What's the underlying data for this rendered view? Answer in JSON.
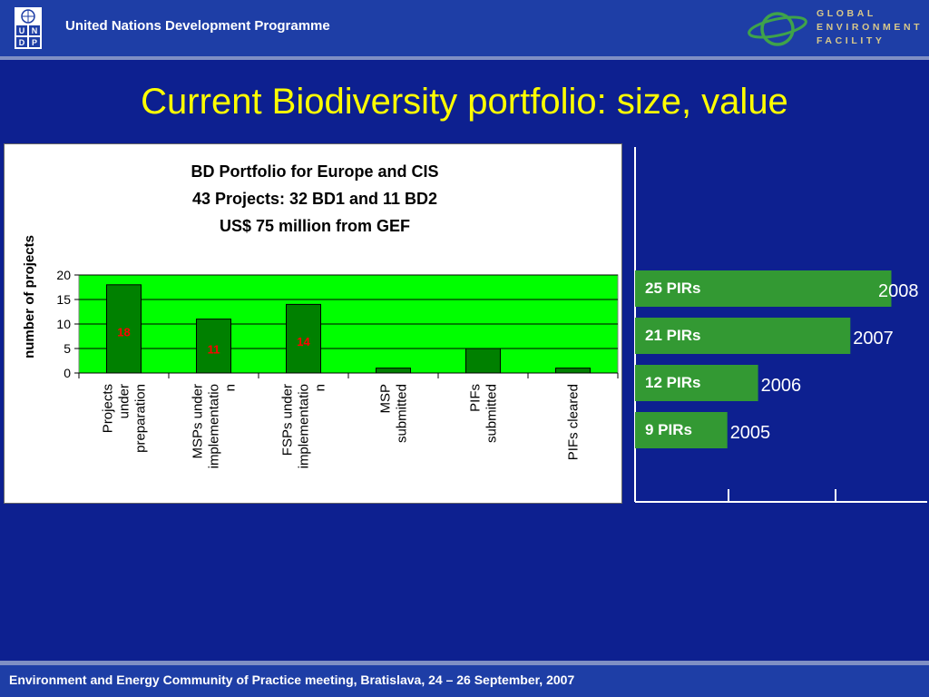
{
  "header": {
    "org_name": "United Nations Development Programme",
    "undp_letters": [
      "U",
      "N",
      "D",
      "P"
    ],
    "gef_lines": [
      "GLOBAL",
      "ENVIRONMENT",
      "FACILITY"
    ]
  },
  "slide_title": "Current Biodiversity portfolio: size, value",
  "chart_data": {
    "type": "bar",
    "title_lines": [
      "BD Portfolio for Europe and CIS",
      "43 Projects: 32 BD1 and 11 BD2",
      "US$ 75 million from GEF"
    ],
    "ylabel": "number of projects",
    "xlabel": "",
    "ylim": [
      0,
      20
    ],
    "yticks": [
      0,
      5,
      10,
      15,
      20
    ],
    "grid": true,
    "plot_background": "#00ff00",
    "bar_color": "#008000",
    "data_label_color": "#ff0000",
    "categories": [
      [
        "Projects",
        "under",
        "preparation"
      ],
      [
        "MSPs under",
        "implementatio",
        "n"
      ],
      [
        "FSPs under",
        "implementatio",
        "n"
      ],
      [
        "MSP",
        "submitted"
      ],
      [
        "PIFs",
        "submitted"
      ],
      [
        "PIFs cleared"
      ]
    ],
    "values": [
      18,
      11,
      14,
      1,
      5,
      1
    ],
    "data_labels": [
      "18",
      "11",
      "14",
      "",
      "",
      ""
    ]
  },
  "timeline": {
    "bar_color": "#339933",
    "items": [
      {
        "label": "25 PIRs",
        "year": "2008",
        "value": 25
      },
      {
        "label": "21 PIRs",
        "year": "2007",
        "value": 21
      },
      {
        "label": "12 PIRs",
        "year": "2006",
        "value": 12
      },
      {
        "label": "9 PIRs",
        "year": "2005",
        "value": 9
      }
    ]
  },
  "footer": {
    "text": "Environment and Energy Community of Practice meeting, Bratislava, 24 – 26 September, 2007"
  }
}
